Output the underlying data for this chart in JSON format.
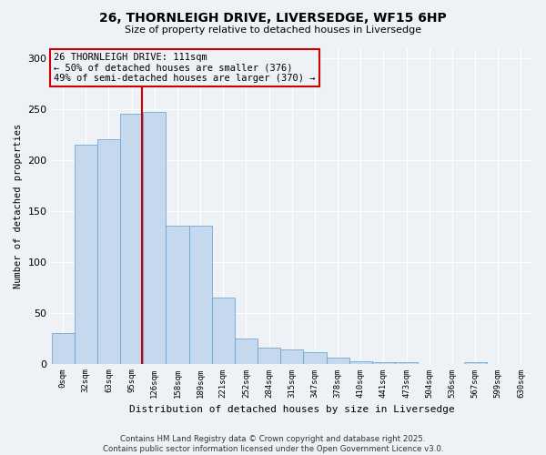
{
  "title": "26, THORNLEIGH DRIVE, LIVERSEDGE, WF15 6HP",
  "subtitle": "Size of property relative to detached houses in Liversedge",
  "xlabel": "Distribution of detached houses by size in Liversedge",
  "ylabel": "Number of detached properties",
  "bin_labels": [
    "0sqm",
    "32sqm",
    "63sqm",
    "95sqm",
    "126sqm",
    "158sqm",
    "189sqm",
    "221sqm",
    "252sqm",
    "284sqm",
    "315sqm",
    "347sqm",
    "378sqm",
    "410sqm",
    "441sqm",
    "473sqm",
    "504sqm",
    "536sqm",
    "567sqm",
    "599sqm",
    "630sqm"
  ],
  "bar_values": [
    30,
    215,
    220,
    245,
    247,
    135,
    135,
    65,
    25,
    16,
    14,
    11,
    6,
    2,
    1,
    1,
    0,
    0,
    1,
    0,
    0
  ],
  "bar_color": "#c5d8ed",
  "bar_edge_color": "#5a9fd4",
  "annotation_text": "26 THORNLEIGH DRIVE: 111sqm\n← 50% of detached houses are smaller (376)\n49% of semi-detached houses are larger (370) →",
  "annotation_box_edge_color": "#cc0000",
  "vline_x": 3.47,
  "vline_color": "#cc0000",
  "ylim": [
    0,
    310
  ],
  "yticks": [
    0,
    50,
    100,
    150,
    200,
    250,
    300
  ],
  "background_color": "#eef2f7",
  "grid_color": "#ffffff",
  "footer_line1": "Contains HM Land Registry data © Crown copyright and database right 2025.",
  "footer_line2": "Contains public sector information licensed under the Open Government Licence v3.0."
}
